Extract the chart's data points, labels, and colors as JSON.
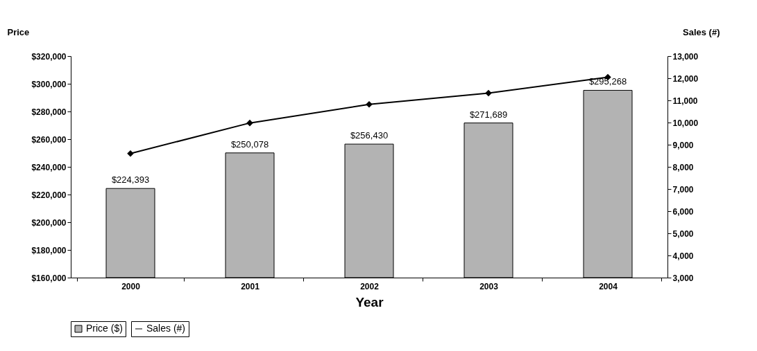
{
  "chart_data": {
    "type": "bar",
    "xlabel": "Year",
    "ylabel": "Price",
    "y2label": "Sales (#)",
    "categories": [
      "2000",
      "2001",
      "2002",
      "2003",
      "2004"
    ],
    "series": [
      {
        "name": "Price ($)",
        "color": "#b3b3b3",
        "values": [
          224393,
          250078,
          256430,
          271689,
          295268
        ],
        "value_labels": [
          "$224,393",
          "$250,078",
          "$256,430",
          "$271,689",
          "$295,268"
        ]
      },
      {
        "name": "Sales (#)",
        "type": "line",
        "axis": "y2",
        "color": "#000000",
        "marker": "diamond",
        "values": [
          8600,
          9980,
          10820,
          11330,
          12050
        ]
      }
    ],
    "ylim": [
      160000,
      320000
    ],
    "yticks": [
      {
        "value": 160000,
        "label": "$160,000"
      },
      {
        "value": 180000,
        "label": "$180,000"
      },
      {
        "value": 200000,
        "label": "$200,000"
      },
      {
        "value": 220000,
        "label": "$220,000"
      },
      {
        "value": 240000,
        "label": "$240,000"
      },
      {
        "value": 260000,
        "label": "$260,000"
      },
      {
        "value": 280000,
        "label": "$280,000"
      },
      {
        "value": 300000,
        "label": "$300,000"
      },
      {
        "value": 320000,
        "label": "$320,000"
      }
    ],
    "y2lim": [
      3000,
      13000
    ],
    "y2ticks": [
      {
        "value": 3000,
        "label": "3,000"
      },
      {
        "value": 4000,
        "label": "4,000"
      },
      {
        "value": 5000,
        "label": "5,000"
      },
      {
        "value": 6000,
        "label": "6,000"
      },
      {
        "value": 7000,
        "label": "7,000"
      },
      {
        "value": 8000,
        "label": "8,000"
      },
      {
        "value": 9000,
        "label": "9,000"
      },
      {
        "value": 10000,
        "label": "10,000"
      },
      {
        "value": 11000,
        "label": "11,000"
      },
      {
        "value": 12000,
        "label": "12,000"
      },
      {
        "value": 13000,
        "label": "13,000"
      }
    ],
    "grid": false,
    "legend": "bottom"
  }
}
